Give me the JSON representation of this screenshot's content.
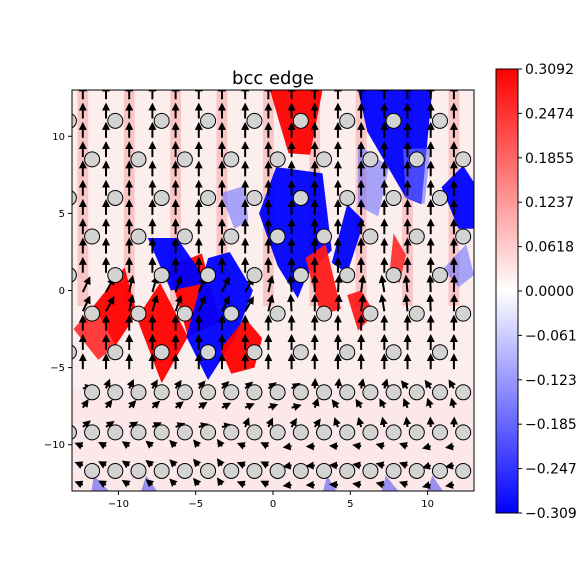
{
  "chart_data": {
    "type": "heatmap",
    "title": "bcc edge",
    "xlabel": "",
    "ylabel": "",
    "xlim": [
      -13,
      13
    ],
    "ylim": [
      -13,
      13
    ],
    "x_ticks": [
      -10,
      -5,
      0,
      5,
      10
    ],
    "x_tick_labels": [
      "−10",
      "−5",
      "0",
      "5",
      "10"
    ],
    "y_ticks": [
      -10,
      -5,
      0,
      5,
      10
    ],
    "y_tick_labels": [
      "−10",
      "−5",
      "0",
      "5",
      "10"
    ],
    "colormap": "bwr",
    "colorbar": {
      "min": -0.3092,
      "max": 0.3092,
      "ticks": [
        0.3092,
        0.2474,
        0.1855,
        0.1237,
        0.0618,
        0.0,
        -0.0618,
        -0.1237,
        -0.1855,
        -0.2474,
        -0.3092
      ],
      "tick_labels": [
        "0.3092",
        "0.2474",
        "0.1855",
        "0.1237",
        "0.0618",
        "0.0000",
        "−0.0618",
        "−0.1237",
        "−0.1855",
        "−0.2474",
        "−0.3092"
      ]
    },
    "atom_rows_y": [
      11,
      8.5,
      6,
      3.5,
      1,
      -1.5,
      -4,
      -6.6,
      -9.2,
      -11.7
    ],
    "atom_color": "#d3d3d3",
    "arrow_color": "#000000",
    "grid": false
  }
}
